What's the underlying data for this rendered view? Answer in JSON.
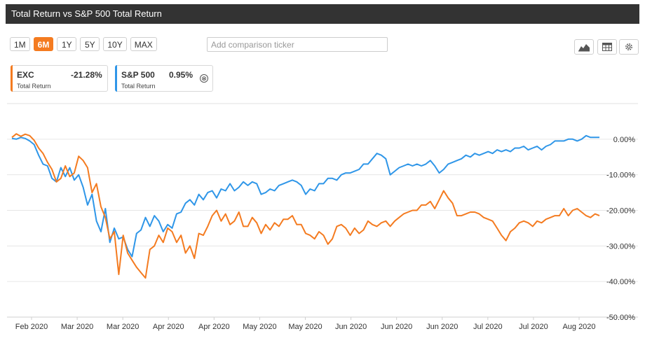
{
  "header": {
    "title": "Total Return vs S&P 500 Total Return"
  },
  "ranges": [
    {
      "label": "1M",
      "active": false
    },
    {
      "label": "6M",
      "active": true
    },
    {
      "label": "1Y",
      "active": false
    },
    {
      "label": "5Y",
      "active": false
    },
    {
      "label": "10Y",
      "active": false
    },
    {
      "label": "MAX",
      "active": false
    }
  ],
  "compare": {
    "placeholder": "Add comparison ticker"
  },
  "legend": [
    {
      "name": "EXC",
      "value": "-21.28%",
      "sub": "Total Return",
      "color": "#f47b20"
    },
    {
      "name": "S&P 500",
      "value": "0.95%",
      "sub": "Total Return",
      "color": "#2f96e8"
    }
  ],
  "legend_close": "⊗",
  "chart_data": {
    "type": "line",
    "title": "Total Return vs S&P 500 Total Return",
    "x_tick_labels": [
      "Feb 2020",
      "Mar 2020",
      "Mar 2020",
      "Apr 2020",
      "Apr 2020",
      "May 2020",
      "May 2020",
      "Jun 2020",
      "Jun 2020",
      "Jun 2020",
      "Jul 2020",
      "Jul 2020",
      "Aug 2020"
    ],
    "ylim": [
      -50,
      10
    ],
    "y_ticks": [
      0,
      -10,
      -20,
      -30,
      -40,
      -50
    ],
    "y_tick_labels": [
      "0.00%",
      "-10.00%",
      "-20.00%",
      "-30.00%",
      "-40.00%",
      "-50.00%"
    ],
    "grid": true,
    "series": [
      {
        "name": "EXC",
        "color": "#f47b20",
        "x": [
          0,
          1,
          2,
          3,
          4,
          5,
          6,
          7,
          8,
          9,
          10,
          11,
          12,
          13,
          14,
          15,
          16,
          17,
          18,
          19,
          20,
          21,
          22,
          23,
          24,
          25,
          26,
          27,
          28,
          29,
          30,
          31,
          32,
          33,
          34,
          35,
          36,
          37,
          38,
          39,
          40,
          41,
          42,
          43,
          44,
          45,
          46,
          47,
          48,
          49,
          50,
          51,
          52,
          53,
          54,
          55,
          56,
          57,
          58,
          59,
          60,
          61,
          62,
          63,
          64,
          65,
          66,
          67,
          68,
          69,
          70,
          71,
          72,
          73,
          74,
          75,
          76,
          77,
          78,
          79,
          80,
          81,
          82,
          83,
          84,
          85,
          86,
          87,
          88,
          89,
          90,
          91,
          92,
          93,
          94,
          95,
          96,
          97,
          98,
          99,
          100,
          101,
          102,
          103,
          104,
          105,
          106,
          107,
          108,
          109,
          110,
          111,
          112,
          113,
          114,
          115,
          116,
          117,
          118,
          119,
          120,
          121,
          122,
          123,
          124,
          125,
          126,
          127,
          128,
          129,
          130,
          131,
          132
        ],
        "values": [
          0.5,
          1.5,
          0.8,
          1.4,
          1.0,
          -0.3,
          -2.5,
          -4.0,
          -6.5,
          -8.5,
          -12.0,
          -11.0,
          -7.5,
          -10.5,
          -9.5,
          -4.8,
          -6.0,
          -8.0,
          -15.0,
          -12.5,
          -19.0,
          -22.0,
          -28.0,
          -26.0,
          -38.0,
          -27.0,
          -32.0,
          -34.0,
          -36.0,
          -37.5,
          -39.0,
          -31.0,
          -30.0,
          -27.0,
          -29.0,
          -25.0,
          -26.0,
          -29.0,
          -27.0,
          -32.0,
          -30.0,
          -33.5,
          -26.5,
          -27.0,
          -24.5,
          -21.5,
          -20.0,
          -23.0,
          -21.0,
          -24.0,
          -23.0,
          -20.5,
          -24.5,
          -24.5,
          -22.0,
          -23.5,
          -26.5,
          -24.0,
          -25.5,
          -23.5,
          -24.5,
          -22.5,
          -22.5,
          -21.5,
          -24.0,
          -24.0,
          -26.5,
          -27.0,
          -28.0,
          -26.0,
          -27.0,
          -29.5,
          -28.0,
          -24.5,
          -24.0,
          -25.0,
          -27.0,
          -25.0,
          -26.5,
          -25.5,
          -23.0,
          -24.0,
          -24.5,
          -23.5,
          -23.0,
          -24.5,
          -23.0,
          -22.0,
          -21.0,
          -20.5,
          -20.0,
          -20.0,
          -18.5,
          -18.5,
          -17.5,
          -19.5,
          -17.0,
          -14.5,
          -16.5,
          -18.0,
          -21.5,
          -21.5,
          -21.0,
          -20.5,
          -20.5,
          -21.0,
          -22.0,
          -22.5,
          -23.0,
          -25.0,
          -27.0,
          -28.5,
          -26.0,
          -25.0,
          -23.5,
          -23.0,
          -23.5,
          -24.5,
          -23.0,
          -23.5,
          -22.5,
          -22.0,
          -21.5,
          -21.5,
          -19.5,
          -21.5,
          -20.0,
          -19.5,
          -20.5,
          -21.5,
          -22.0,
          -21.0,
          -21.5
        ]
      },
      {
        "name": "S&P 500",
        "color": "#2f96e8",
        "x": [
          0,
          1,
          2,
          3,
          4,
          5,
          6,
          7,
          8,
          9,
          10,
          11,
          12,
          13,
          14,
          15,
          16,
          17,
          18,
          19,
          20,
          21,
          22,
          23,
          24,
          25,
          26,
          27,
          28,
          29,
          30,
          31,
          32,
          33,
          34,
          35,
          36,
          37,
          38,
          39,
          40,
          41,
          42,
          43,
          44,
          45,
          46,
          47,
          48,
          49,
          50,
          51,
          52,
          53,
          54,
          55,
          56,
          57,
          58,
          59,
          60,
          61,
          62,
          63,
          64,
          65,
          66,
          67,
          68,
          69,
          70,
          71,
          72,
          73,
          74,
          75,
          76,
          77,
          78,
          79,
          80,
          81,
          82,
          83,
          84,
          85,
          86,
          87,
          88,
          89,
          90,
          91,
          92,
          93,
          94,
          95,
          96,
          97,
          98,
          99,
          100,
          101,
          102,
          103,
          104,
          105,
          106,
          107,
          108,
          109,
          110,
          111,
          112,
          113,
          114,
          115,
          116,
          117,
          118,
          119,
          120,
          121,
          122,
          123,
          124,
          125,
          126,
          127,
          128,
          129,
          130,
          131,
          132
        ],
        "values": [
          0.2,
          0.0,
          0.5,
          0.2,
          -0.5,
          -1.5,
          -4.5,
          -7.0,
          -7.5,
          -11.0,
          -12.0,
          -8.0,
          -10.5,
          -8.0,
          -11.5,
          -10.0,
          -13.5,
          -18.5,
          -15.5,
          -23.0,
          -26.0,
          -19.5,
          -29.0,
          -25.0,
          -28.0,
          -27.5,
          -31.0,
          -33.0,
          -26.5,
          -25.5,
          -22.0,
          -24.5,
          -21.5,
          -23.0,
          -26.0,
          -24.0,
          -25.0,
          -21.0,
          -20.5,
          -18.0,
          -17.0,
          -18.5,
          -15.5,
          -17.0,
          -15.0,
          -14.5,
          -16.5,
          -14.0,
          -14.5,
          -12.5,
          -14.5,
          -13.5,
          -12.0,
          -13.0,
          -12.0,
          -12.5,
          -15.5,
          -15.0,
          -14.0,
          -14.5,
          -13.0,
          -12.5,
          -12.0,
          -11.5,
          -12.0,
          -13.0,
          -15.5,
          -14.0,
          -14.5,
          -12.5,
          -12.5,
          -11.0,
          -11.0,
          -11.5,
          -10.0,
          -9.5,
          -9.5,
          -9.0,
          -8.5,
          -7.0,
          -7.0,
          -5.5,
          -4.0,
          -4.5,
          -5.5,
          -10.0,
          -9.0,
          -8.0,
          -7.5,
          -7.0,
          -7.5,
          -7.0,
          -7.5,
          -7.0,
          -6.0,
          -7.5,
          -9.5,
          -8.5,
          -7.0,
          -6.5,
          -6.0,
          -5.5,
          -4.5,
          -5.0,
          -4.0,
          -4.5,
          -4.0,
          -3.5,
          -4.0,
          -3.0,
          -3.5,
          -3.0,
          -3.5,
          -2.5,
          -2.5,
          -2.0,
          -3.0,
          -2.5,
          -2.0,
          -3.0,
          -2.0,
          -1.5,
          -0.5,
          -0.5,
          -0.5,
          0.0,
          0.0,
          -0.5,
          0.0,
          1.0,
          0.5,
          0.5,
          0.5
        ]
      }
    ]
  }
}
